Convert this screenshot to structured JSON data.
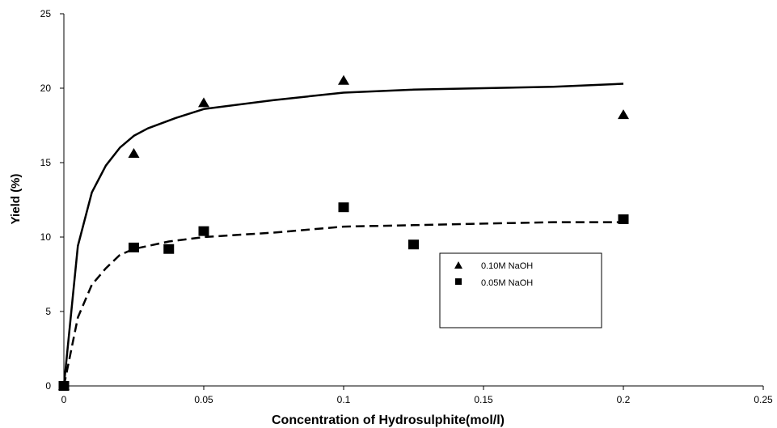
{
  "chart_data": {
    "type": "scatter",
    "title": "",
    "xlabel": "Concentration of Hydrosulphite(mol/l)",
    "ylabel": "Yield (%)",
    "xlim": [
      0,
      0.25
    ],
    "ylim": [
      0,
      25
    ],
    "x_ticks": [
      "0",
      "0.05",
      "0.1",
      "0.15",
      "0.2",
      "0.25"
    ],
    "y_ticks": [
      "0",
      "5",
      "10",
      "15",
      "20",
      "25"
    ],
    "grid": false,
    "legend_position": "right",
    "series": [
      {
        "name": "0.10M NaOH",
        "marker": "triangle",
        "color": "#000000",
        "points": [
          [
            0,
            0
          ],
          [
            0.025,
            15.6
          ],
          [
            0.05,
            19.0
          ],
          [
            0.1,
            20.5
          ],
          [
            0.2,
            18.2
          ]
        ],
        "trend_line": {
          "style": "solid",
          "points": [
            [
              0,
              0
            ],
            [
              0.005,
              9.4
            ],
            [
              0.01,
              13.0
            ],
            [
              0.015,
              14.8
            ],
            [
              0.02,
              16.0
            ],
            [
              0.025,
              16.8
            ],
            [
              0.03,
              17.3
            ],
            [
              0.04,
              18.0
            ],
            [
              0.05,
              18.6
            ],
            [
              0.075,
              19.2
            ],
            [
              0.1,
              19.7
            ],
            [
              0.125,
              19.9
            ],
            [
              0.15,
              20.0
            ],
            [
              0.175,
              20.1
            ],
            [
              0.2,
              20.3
            ]
          ]
        }
      },
      {
        "name": "0.05M NaOH",
        "marker": "square",
        "color": "#000000",
        "points": [
          [
            0,
            0
          ],
          [
            0.025,
            9.3
          ],
          [
            0.0375,
            9.2
          ],
          [
            0.05,
            10.4
          ],
          [
            0.1,
            12.0
          ],
          [
            0.125,
            9.5
          ],
          [
            0.2,
            11.2
          ]
        ],
        "trend_line": {
          "style": "dashed",
          "points": [
            [
              0,
              0
            ],
            [
              0.005,
              4.6
            ],
            [
              0.01,
              6.8
            ],
            [
              0.015,
              7.9
            ],
            [
              0.02,
              8.8
            ],
            [
              0.025,
              9.2
            ],
            [
              0.0375,
              9.7
            ],
            [
              0.05,
              10.0
            ],
            [
              0.075,
              10.3
            ],
            [
              0.1,
              10.7
            ],
            [
              0.125,
              10.8
            ],
            [
              0.15,
              10.9
            ],
            [
              0.175,
              11.0
            ],
            [
              0.2,
              11.0
            ]
          ]
        }
      }
    ]
  }
}
